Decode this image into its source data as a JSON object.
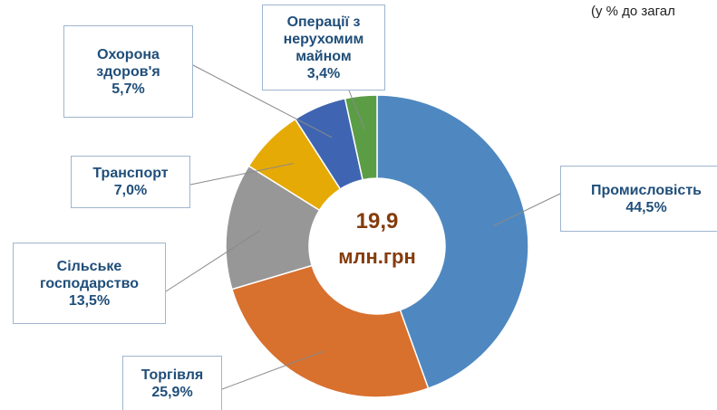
{
  "chart_data": {
    "type": "donut",
    "subtitle": "(у % до загал",
    "categories": [
      "Промисловість",
      "Торгівля",
      "Сільське господарство",
      "Транспорт",
      "Охорона здоров'я",
      "Операції з нерухомим майном"
    ],
    "values": [
      44.5,
      25.9,
      13.5,
      7.0,
      5.7,
      3.4
    ],
    "value_labels": [
      "44,5%",
      "25,9%",
      "13,5%",
      "7,0%",
      "5,7%",
      "3,4%"
    ],
    "colors": [
      "#4f88c0",
      "#d8702e",
      "#979797",
      "#e6aa06",
      "#3f65b2",
      "#5b9d45"
    ],
    "annotations": [
      "19,9",
      "млн.грн"
    ]
  }
}
